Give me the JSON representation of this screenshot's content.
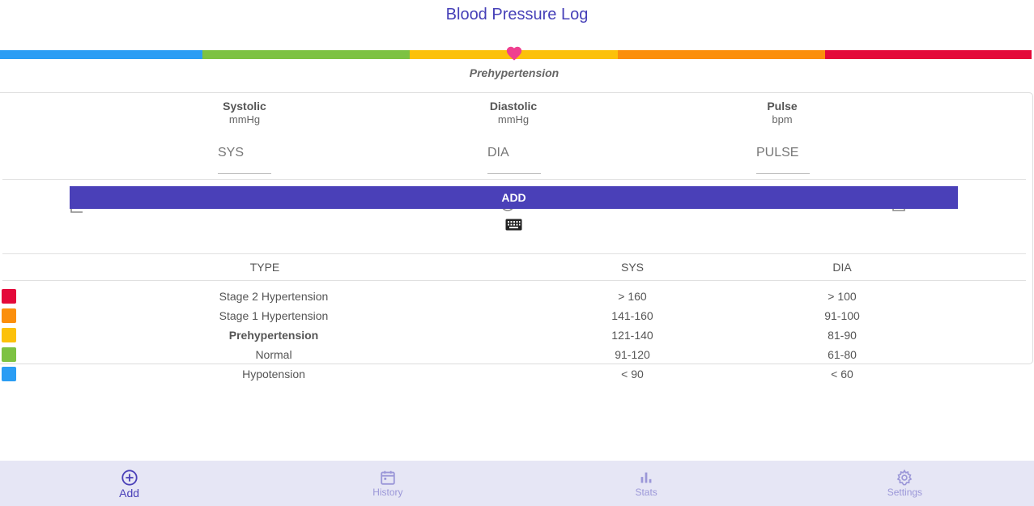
{
  "app": {
    "title": "Blood Pressure Log"
  },
  "scale": {
    "segments": [
      {
        "name": "Hypotension",
        "color": "#2a9df4"
      },
      {
        "name": "Normal",
        "color": "#7dc242"
      },
      {
        "name": "Prehypertension",
        "color": "#fcc10a"
      },
      {
        "name": "Stage 1 Hypertension",
        "color": "#fb8f0c"
      },
      {
        "name": "Stage 2 Hypertension",
        "color": "#e4093a"
      }
    ],
    "current_category": "Prehypertension",
    "marker_color": "#ef3f8f"
  },
  "form": {
    "systolic": {
      "label": "Systolic",
      "unit": "mmHg",
      "placeholder": "SYS",
      "value": ""
    },
    "diastolic": {
      "label": "Diastolic",
      "unit": "mmHg",
      "placeholder": "DIA",
      "value": ""
    },
    "pulse": {
      "label": "Pulse",
      "unit": "bpm",
      "placeholder": "PULSE",
      "value": ""
    },
    "add_label": "ADD"
  },
  "table": {
    "headers": {
      "type": "TYPE",
      "sys": "SYS",
      "dia": "DIA"
    },
    "rows": [
      {
        "type": "Stage 2 Hypertension",
        "sys": "> 160",
        "dia": "> 100",
        "color": "#e4093a"
      },
      {
        "type": "Stage 1 Hypertension",
        "sys": "141-160",
        "dia": "91-100",
        "color": "#fb8f0c"
      },
      {
        "type": "Prehypertension",
        "sys": "121-140",
        "dia": "81-90",
        "color": "#fcc10a"
      },
      {
        "type": "Normal",
        "sys": "91-120",
        "dia": "61-80",
        "color": "#7dc242"
      },
      {
        "type": "Hypotension",
        "sys": "< 90",
        "dia": "< 60",
        "color": "#2a9df4"
      }
    ]
  },
  "nav": {
    "items": [
      {
        "label": "Add",
        "icon": "add-circle-icon",
        "active": true
      },
      {
        "label": "History",
        "icon": "calendar-icon",
        "active": false
      },
      {
        "label": "Stats",
        "icon": "bar-chart-icon",
        "active": false
      },
      {
        "label": "Settings",
        "icon": "gear-icon",
        "active": false
      }
    ]
  },
  "colors": {
    "accent": "#4a40b8",
    "nav_bg": "#e6e6f5",
    "nav_inactive": "#9b97d8"
  }
}
